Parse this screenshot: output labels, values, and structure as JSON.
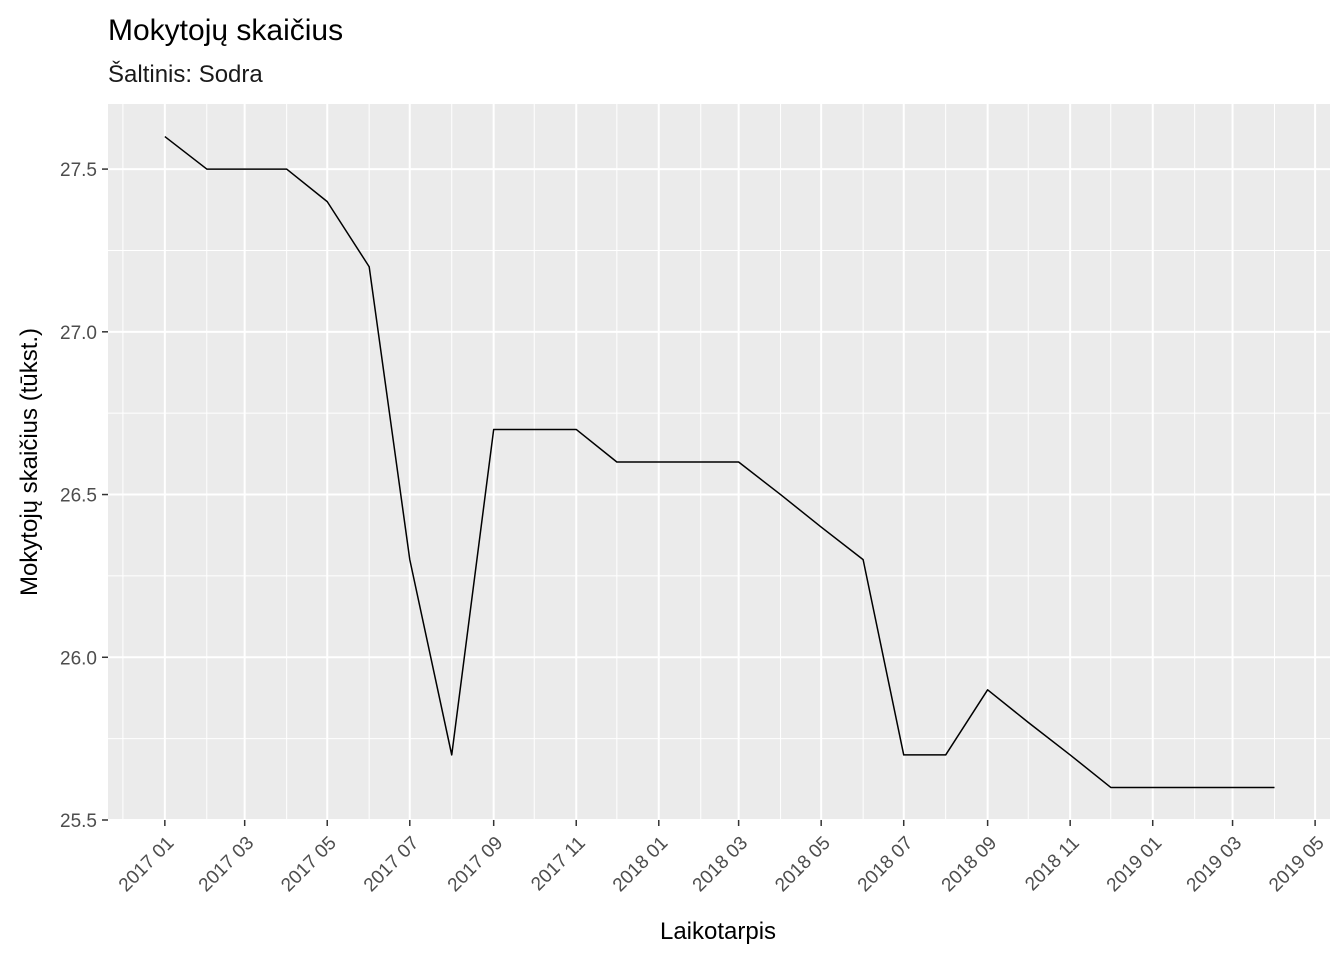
{
  "chart_data": {
    "type": "line",
    "title": "Mokytojų skaičius",
    "subtitle": "Šaltinis: Sodra",
    "xlabel": "Laikotarpis",
    "ylabel": "Mokytojų skaičius (tūkst.)",
    "x_axis_kind": "date",
    "xlim": [
      "2016-11-20",
      "2019-05-12"
    ],
    "ylim": [
      25.5,
      27.7
    ],
    "y_ticks": [
      "25.5",
      "26.0",
      "26.5",
      "27.0",
      "27.5"
    ],
    "y_minor_ticks": [
      25.75,
      26.25,
      26.75,
      27.25
    ],
    "x_ticks": [
      {
        "date": "2017-01-01",
        "label": "2017 01"
      },
      {
        "date": "2017-03-01",
        "label": "2017 03"
      },
      {
        "date": "2017-05-01",
        "label": "2017 05"
      },
      {
        "date": "2017-07-01",
        "label": "2017 07"
      },
      {
        "date": "2017-09-01",
        "label": "2017 09"
      },
      {
        "date": "2017-11-01",
        "label": "2017 11"
      },
      {
        "date": "2018-01-01",
        "label": "2018 01"
      },
      {
        "date": "2018-03-01",
        "label": "2018 03"
      },
      {
        "date": "2018-05-01",
        "label": "2018 05"
      },
      {
        "date": "2018-07-01",
        "label": "2018 07"
      },
      {
        "date": "2018-09-01",
        "label": "2018 09"
      },
      {
        "date": "2018-11-01",
        "label": "2018 11"
      },
      {
        "date": "2019-01-01",
        "label": "2019 01"
      },
      {
        "date": "2019-03-01",
        "label": "2019 03"
      },
      {
        "date": "2019-05-01",
        "label": "2019 05"
      }
    ],
    "x_minor_ticks": [
      "2016-12-01",
      "2017-02-01",
      "2017-04-01",
      "2017-06-01",
      "2017-08-01",
      "2017-10-01",
      "2017-12-01",
      "2018-02-01",
      "2018-04-01",
      "2018-06-01",
      "2018-08-01",
      "2018-10-01",
      "2018-12-01",
      "2019-02-01",
      "2019-04-01"
    ],
    "grid": true,
    "legend": "none",
    "series": [
      {
        "color": "#000000",
        "points": [
          {
            "x": "2017-01-01",
            "y": 27.6
          },
          {
            "x": "2017-02-01",
            "y": 27.5
          },
          {
            "x": "2017-03-01",
            "y": 27.5
          },
          {
            "x": "2017-04-01",
            "y": 27.5
          },
          {
            "x": "2017-05-01",
            "y": 27.4
          },
          {
            "x": "2017-06-01",
            "y": 27.2
          },
          {
            "x": "2017-07-01",
            "y": 26.3
          },
          {
            "x": "2017-08-01",
            "y": 25.7
          },
          {
            "x": "2017-09-01",
            "y": 26.7
          },
          {
            "x": "2017-10-01",
            "y": 26.7
          },
          {
            "x": "2017-11-01",
            "y": 26.7
          },
          {
            "x": "2017-12-01",
            "y": 26.6
          },
          {
            "x": "2018-01-01",
            "y": 26.6
          },
          {
            "x": "2018-02-01",
            "y": 26.6
          },
          {
            "x": "2018-03-01",
            "y": 26.6
          },
          {
            "x": "2018-04-01",
            "y": 26.5
          },
          {
            "x": "2018-05-01",
            "y": 26.4
          },
          {
            "x": "2018-06-01",
            "y": 26.3
          },
          {
            "x": "2018-07-01",
            "y": 25.7
          },
          {
            "x": "2018-08-01",
            "y": 25.7
          },
          {
            "x": "2018-09-01",
            "y": 25.9
          },
          {
            "x": "2018-10-01",
            "y": 25.8
          },
          {
            "x": "2018-11-01",
            "y": 25.7
          },
          {
            "x": "2018-12-01",
            "y": 25.6
          },
          {
            "x": "2019-01-01",
            "y": 25.6
          },
          {
            "x": "2019-02-01",
            "y": 25.6
          },
          {
            "x": "2019-03-01",
            "y": 25.6
          },
          {
            "x": "2019-04-01",
            "y": 25.6
          }
        ]
      }
    ],
    "colors": {
      "panel": "#ebebeb",
      "grid": "#ffffff",
      "tick": "#333333"
    }
  }
}
